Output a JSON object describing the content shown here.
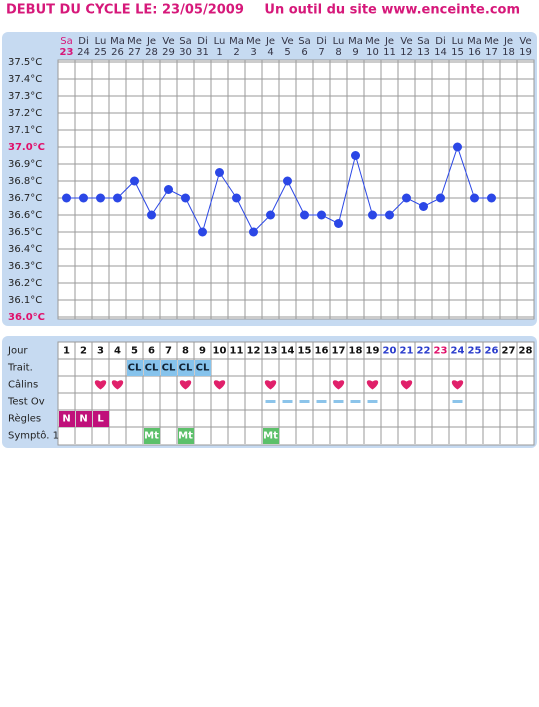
{
  "header": {
    "title": "DEBUT DU CYCLE LE: 23/05/2009",
    "site": "Un outil du site www.enceinte.com"
  },
  "chart_data": {
    "type": "line",
    "day_names": [
      "Sa",
      "Di",
      "Lu",
      "Ma",
      "Me",
      "Je",
      "Ve",
      "Sa",
      "Di",
      "Lu",
      "Ma",
      "Me",
      "Je",
      "Ve",
      "Sa",
      "Di",
      "Lu",
      "Ma",
      "Me",
      "Je",
      "Ve",
      "Sa",
      "Di",
      "Lu",
      "Ma",
      "Me",
      "Je",
      "Ve"
    ],
    "categories": [
      "23",
      "24",
      "25",
      "26",
      "27",
      "28",
      "29",
      "30",
      "31",
      "1",
      "2",
      "3",
      "4",
      "5",
      "6",
      "7",
      "8",
      "9",
      "10",
      "11",
      "12",
      "13",
      "14",
      "15",
      "16",
      "17",
      "18",
      "19"
    ],
    "category_colors": [
      "#d6187a",
      "#334",
      "#334",
      "#334",
      "#334",
      "#334",
      "#334",
      "#334",
      "#334",
      "#334",
      "#334",
      "#334",
      "#334",
      "#334",
      "#334",
      "#334",
      "#334",
      "#334",
      "#334",
      "#334",
      "#334",
      "#334",
      "#334",
      "#334",
      "#334",
      "#334",
      "#334",
      "#334"
    ],
    "series": [
      {
        "name": "Température",
        "color": "#2b47e6",
        "values": [
          36.7,
          36.7,
          36.7,
          36.7,
          36.8,
          36.6,
          36.75,
          36.7,
          36.5,
          36.85,
          36.7,
          36.5,
          36.6,
          36.8,
          36.6,
          36.6,
          36.55,
          36.95,
          36.6,
          36.6,
          36.7,
          36.65,
          36.7,
          37.0,
          36.7,
          36.7,
          null,
          null
        ]
      }
    ],
    "ylim": [
      36.0,
      37.5
    ],
    "yticks": [
      {
        "value": 37.5,
        "label": "37.5°C"
      },
      {
        "value": 37.4,
        "label": "37.4°C"
      },
      {
        "value": 37.3,
        "label": "37.3°C"
      },
      {
        "value": 37.2,
        "label": "37.2°C"
      },
      {
        "value": 37.1,
        "label": "37.1°C"
      },
      {
        "value": 37.0,
        "label": "37.0°C",
        "color": "#e0106a"
      },
      {
        "value": 36.9,
        "label": "36.9°C"
      },
      {
        "value": 36.8,
        "label": "36.8°C"
      },
      {
        "value": 36.7,
        "label": "36.7°C"
      },
      {
        "value": 36.6,
        "label": "36.6°C"
      },
      {
        "value": 36.5,
        "label": "36.5°C"
      },
      {
        "value": 36.4,
        "label": "36.4°C"
      },
      {
        "value": 36.3,
        "label": "36.3°C"
      },
      {
        "value": 36.2,
        "label": "36.2°C"
      },
      {
        "value": 36.1,
        "label": "36.1°C"
      },
      {
        "value": 36.0,
        "label": "36.0°C",
        "color": "#e0106a"
      }
    ],
    "grid": true
  },
  "cycle_table": {
    "row_labels": [
      "Jour",
      "Trait.",
      "Câlins",
      "Test Ov",
      "Règles",
      "Symptô. 1"
    ],
    "days": [
      1,
      2,
      3,
      4,
      5,
      6,
      7,
      8,
      9,
      10,
      11,
      12,
      13,
      14,
      15,
      16,
      17,
      18,
      19,
      20,
      21,
      22,
      23,
      24,
      25,
      26,
      27,
      28
    ],
    "day_colors": [
      "#111",
      "#111",
      "#111",
      "#111",
      "#111",
      "#111",
      "#111",
      "#111",
      "#111",
      "#111",
      "#111",
      "#111",
      "#111",
      "#111",
      "#111",
      "#111",
      "#111",
      "#111",
      "#111",
      "#2a3ccc",
      "#2a3ccc",
      "#2a3ccc",
      "#e0106a",
      "#2a3ccc",
      "#2a3ccc",
      "#2a3ccc",
      "#111",
      "#111"
    ],
    "treatment": [
      null,
      null,
      null,
      null,
      "CL",
      "CL",
      "CL",
      "CL",
      "CL",
      null,
      null,
      null,
      null,
      null,
      null,
      null,
      null,
      null,
      null,
      null,
      null,
      null,
      null,
      null,
      null,
      null,
      null,
      null
    ],
    "treatment_color": "#86c3ec",
    "calins": [
      false,
      false,
      true,
      true,
      false,
      false,
      false,
      true,
      false,
      true,
      false,
      false,
      true,
      false,
      false,
      false,
      true,
      false,
      true,
      false,
      true,
      false,
      false,
      true,
      false,
      false,
      false,
      false
    ],
    "calins_color": "#e0206a",
    "test_ov": [
      false,
      false,
      false,
      false,
      false,
      false,
      false,
      false,
      false,
      false,
      false,
      false,
      true,
      true,
      true,
      true,
      true,
      true,
      true,
      false,
      false,
      false,
      false,
      true,
      false,
      false,
      false,
      false
    ],
    "test_ov_color": "#8cc4ea",
    "regles": [
      "N",
      "N",
      "L",
      null,
      null,
      null,
      null,
      null,
      null,
      null,
      null,
      null,
      null,
      null,
      null,
      null,
      null,
      null,
      null,
      null,
      null,
      null,
      null,
      null,
      null,
      null,
      null,
      null
    ],
    "regles_color": "#c0107a",
    "symptome": [
      null,
      null,
      null,
      null,
      null,
      "Mt",
      null,
      "Mt",
      null,
      null,
      null,
      null,
      "Mt",
      null,
      null,
      null,
      null,
      null,
      null,
      null,
      null,
      null,
      null,
      null,
      null,
      null,
      null,
      null
    ],
    "symptome_color": "#5cc06a"
  }
}
